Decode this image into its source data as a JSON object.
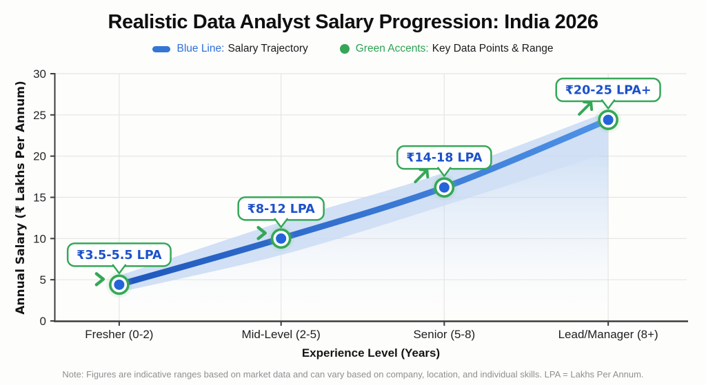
{
  "page": {
    "title": "Realistic Data Analyst Salary Progression: India 2026",
    "note": "Note: Figures are indicative ranges based on market data and can vary based on company, location, and individual skills. LPA = Lakhs Per Annum."
  },
  "legend": {
    "items": [
      {
        "swatch": "blue-line-swatch",
        "label_colored": "Blue Line:",
        "label_rest": "Salary Trajectory",
        "color": "#2e6fd6"
      },
      {
        "swatch": "green-dot-swatch",
        "label_colored": "Green Accents:",
        "label_rest": "Key Data Points & Range",
        "color": "#2ea253"
      }
    ]
  },
  "chart_data": {
    "type": "line",
    "title": "Realistic Data Analyst Salary Progression: India 2026",
    "xlabel": "Experience Level (Years)",
    "ylabel": "Annual Salary (₹ Lakhs Per Annum)",
    "categories": [
      "Fresher (0-2)",
      "Mid-Level (2-5)",
      "Senior (5-8)",
      "Lead/Manager (8+)"
    ],
    "series": [
      {
        "name": "Salary Trajectory",
        "values": [
          4.4,
          10,
          16.2,
          24.4
        ]
      }
    ],
    "band": {
      "name": "Key Data Points & Range",
      "upper": [
        5.5,
        12,
        18,
        25.4
      ],
      "lower": [
        3.5,
        8,
        14,
        20.4
      ]
    },
    "point_labels": [
      "₹3.5-5.5 LPA",
      "₹8-12 LPA",
      "₹14-18 LPA",
      "₹20-25 LPA+"
    ],
    "point_arrows": [
      "chevron",
      "chevron",
      "diag",
      "diag"
    ],
    "yticks": [
      0,
      5,
      10,
      15,
      20,
      25,
      30
    ],
    "ylim": [
      0,
      30
    ],
    "grid": true,
    "legend_position": "top",
    "colors": {
      "line_start": "#1f57bd",
      "line_end": "#4e92e6",
      "band": "#c9dbf3",
      "marker_fill": "#2563d9",
      "accent_green": "#35a757",
      "callout_text": "#1c51c9",
      "axis": "#3c3c3c",
      "gridline": "#e5e5e3",
      "tick_label": "#262626"
    }
  }
}
